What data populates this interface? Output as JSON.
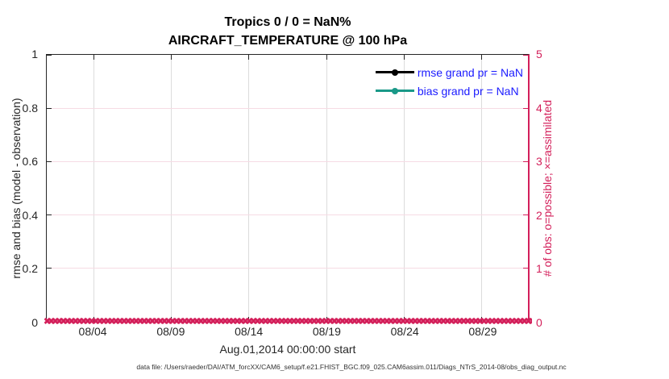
{
  "figure": {
    "title": "Tropics 0 / 0 = NaN%",
    "subtitle": "AIRCRAFT_TEMPERATURE @ 100 hPa",
    "footer": "data file: /Users/raeder/DAI/ATM_forcXX/CAM6_setup/f.e21.FHIST_BGC.f09_025.CAM6assim.011/Diags_NTrS_2014-08/obs_diag_output.nc"
  },
  "axes": {
    "xlabel": "Aug.01,2014 00:00:00 start",
    "ylabel_left": "rmse and bias (model - observation)",
    "ylabel_right": "# of obs: o=possible; ×=assimilated",
    "x_ticks": [
      "08/04",
      "08/09",
      "08/14",
      "08/19",
      "08/24",
      "08/29"
    ],
    "y_ticks_left": [
      "0",
      "0.2",
      "0.4",
      "0.6",
      "0.8",
      "1"
    ],
    "y_ticks_right": [
      "0",
      "1",
      "2",
      "3",
      "4",
      "5"
    ]
  },
  "legend": {
    "items": [
      {
        "label": "rmse grand pr = NaN",
        "color": "#000000",
        "marker": "filled-circle"
      },
      {
        "label": "bias grand pr = NaN",
        "color": "#1a9988",
        "marker": "filled-circle"
      }
    ],
    "text_color": "#1a1aff"
  },
  "colors": {
    "right_axis_pink": "#d31f5a",
    "bias_teal": "#1a9988",
    "legend_text_blue": "#1a1aff",
    "grid_horizontal_pink": "#f6dbe4",
    "grid_vertical_gray": "#dcdcdc",
    "axis_dark": "#262626"
  },
  "obs_markers": {
    "glyph": "✖",
    "count": 140
  },
  "chart_data": {
    "type": "line",
    "title": "Tropics 0 / 0 = NaN%",
    "subtitle": "AIRCRAFT_TEMPERATURE @ 100 hPa",
    "xlabel": "Aug.01,2014 00:00:00 start",
    "ylabel_left": "rmse and bias (model - observation)",
    "ylabel_right": "# of obs: o=possible; ×=assimilated",
    "x_range": [
      "2014-08-01 00:00:00",
      "2014-09-01 00:00:00"
    ],
    "x_tick_labels": [
      "08/04",
      "08/09",
      "08/14",
      "08/19",
      "08/24",
      "08/29"
    ],
    "ylim_left": [
      0,
      1
    ],
    "ylim_right": [
      0,
      5
    ],
    "y_ticks_left": [
      0,
      0.2,
      0.4,
      0.6,
      0.8,
      1
    ],
    "y_ticks_right": [
      0,
      1,
      2,
      3,
      4,
      5
    ],
    "grid": true,
    "legend_position": "top-right-inside",
    "series": [
      {
        "name": "rmse grand pr = NaN",
        "axis": "left",
        "color": "#000000",
        "marker": "filled-circle",
        "values": [],
        "note": "all values NaN, nothing plotted"
      },
      {
        "name": "bias grand pr = NaN",
        "axis": "left",
        "color": "#1a9988",
        "marker": "filled-circle",
        "values": [],
        "note": "all values NaN, nothing plotted"
      },
      {
        "name": "# of obs possible (o)",
        "axis": "right",
        "color": "#d31f5a",
        "marker": "o",
        "note": "value 0 at every time step across August 2014 (dense marker band along y=0)"
      },
      {
        "name": "# of obs assimilated (×)",
        "axis": "right",
        "color": "#d31f5a",
        "marker": "×",
        "note": "value 0 at every time step across August 2014 (dense marker band along y=0)"
      }
    ]
  }
}
